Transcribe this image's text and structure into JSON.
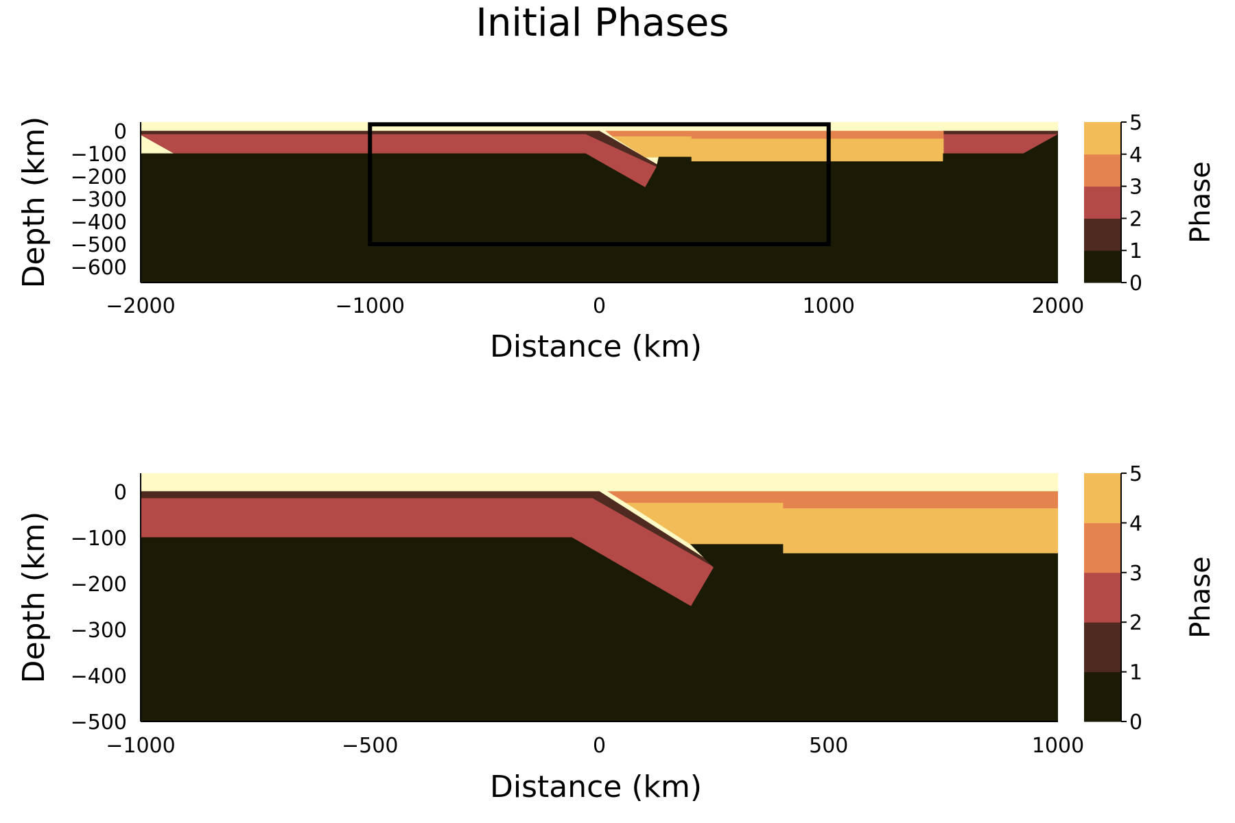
{
  "title": "Initial Phases",
  "colors": {
    "phase0": "#1b1a05",
    "phase1": "#4e2a20",
    "phase2": "#b34a48",
    "phase3": "#e5834f",
    "phase4": "#f2bd58",
    "phase5": "#fffac6",
    "frame": "#000000"
  },
  "chart_data": [
    {
      "type": "heatmap",
      "title": "",
      "xlabel": "Distance (km)",
      "ylabel": "Depth (km)",
      "xlim": [
        -2000,
        2000
      ],
      "ylim": [
        -670,
        40
      ],
      "xticks": [
        -2000,
        -1000,
        0,
        1000,
        2000
      ],
      "xtick_labels": [
        "−2000",
        "−1000",
        "0",
        "1000",
        "2000"
      ],
      "yticks": [
        0,
        -100,
        -200,
        -300,
        -400,
        -500,
        -600
      ],
      "ytick_labels": [
        "0",
        "−100",
        "−200",
        "−300",
        "−400",
        "−500",
        "−600"
      ],
      "grid": false,
      "colorbar": {
        "label": "Phase",
        "range": [
          0,
          5
        ],
        "ticks": [
          0,
          1,
          2,
          3,
          4,
          5
        ],
        "tick_labels": [
          "0",
          "1",
          "2",
          "3",
          "4",
          "5"
        ]
      },
      "zoom_box": {
        "x": [
          -1000,
          1000
        ],
        "y": [
          -500,
          30
        ]
      },
      "regions": [
        {
          "phase": 5,
          "points": [
            [
              -2000,
              40
            ],
            [
              2000,
              40
            ],
            [
              2000,
              -670
            ],
            [
              -2000,
              -670
            ]
          ]
        },
        {
          "phase": 1,
          "points": [
            [
              -2000,
              0
            ],
            [
              0,
              0
            ],
            [
              280,
              -165
            ],
            [
              250,
              -175
            ],
            [
              -1850,
              -100
            ],
            [
              -2000,
              -15
            ]
          ]
        },
        {
          "phase": 2,
          "points": [
            [
              -2000,
              -15
            ],
            [
              -60,
              -15
            ],
            [
              250,
              -160
            ],
            [
              200,
              -250
            ],
            [
              -60,
              -100
            ],
            [
              -1850,
              -100
            ]
          ]
        },
        {
          "phase": 1,
          "points": [
            [
              1500,
              0
            ],
            [
              2000,
              0
            ],
            [
              2000,
              -15
            ],
            [
              1500,
              -15
            ]
          ]
        },
        {
          "phase": 2,
          "points": [
            [
              1500,
              -15
            ],
            [
              2000,
              -15
            ],
            [
              1850,
              -100
            ],
            [
              1500,
              -100
            ]
          ]
        },
        {
          "phase": 3,
          "points": [
            [
              30,
              0
            ],
            [
              1500,
              0
            ],
            [
              1500,
              -35
            ],
            [
              400,
              -35
            ],
            [
              400,
              -25
            ],
            [
              60,
              -25
            ]
          ]
        },
        {
          "phase": 4,
          "points": [
            [
              60,
              -25
            ],
            [
              400,
              -25
            ],
            [
              400,
              -35
            ],
            [
              1500,
              -35
            ],
            [
              1500,
              -135
            ],
            [
              400,
              -135
            ],
            [
              400,
              -115
            ],
            [
              200,
              -115
            ]
          ]
        },
        {
          "phase": 0,
          "points": [
            [
              -2000,
              -100
            ],
            [
              -60,
              -100
            ],
            [
              200,
              -250
            ],
            [
              250,
              -160
            ],
            [
              260,
              -115
            ],
            [
              400,
              -115
            ],
            [
              400,
              -135
            ],
            [
              1500,
              -135
            ],
            [
              1500,
              -100
            ],
            [
              1850,
              -100
            ],
            [
              2000,
              -15
            ],
            [
              2000,
              -670
            ],
            [
              -2000,
              -670
            ]
          ]
        }
      ]
    },
    {
      "type": "heatmap",
      "title": "",
      "xlabel": "Distance (km)",
      "ylabel": "Depth (km)",
      "xlim": [
        -1000,
        1000
      ],
      "ylim": [
        -500,
        40
      ],
      "xticks": [
        -1000,
        -500,
        0,
        500,
        1000
      ],
      "xtick_labels": [
        "−1000",
        "−500",
        "0",
        "500",
        "1000"
      ],
      "yticks": [
        0,
        -100,
        -200,
        -300,
        -400,
        -500
      ],
      "ytick_labels": [
        "0",
        "−100",
        "−200",
        "−300",
        "−400",
        "−500"
      ],
      "grid": false,
      "colorbar": {
        "label": "Phase",
        "range": [
          0,
          5
        ],
        "ticks": [
          0,
          1,
          2,
          3,
          4,
          5
        ],
        "tick_labels": [
          "0",
          "1",
          "2",
          "3",
          "4",
          "5"
        ]
      },
      "regions": [
        {
          "phase": 5,
          "points": [
            [
              -1000,
              40
            ],
            [
              1000,
              40
            ],
            [
              1000,
              -500
            ],
            [
              -1000,
              -500
            ]
          ]
        },
        {
          "phase": 1,
          "points": [
            [
              -1000,
              0
            ],
            [
              0,
              0
            ],
            [
              260,
              -165
            ],
            [
              250,
              -175
            ],
            [
              -1000,
              -100
            ]
          ]
        },
        {
          "phase": 2,
          "points": [
            [
              -1000,
              -15
            ],
            [
              -15,
              -15
            ],
            [
              250,
              -165
            ],
            [
              200,
              -250
            ],
            [
              -60,
              -100
            ],
            [
              -1000,
              -100
            ]
          ]
        },
        {
          "phase": 3,
          "points": [
            [
              20,
              0
            ],
            [
              1000,
              0
            ],
            [
              1000,
              -37
            ],
            [
              400,
              -37
            ],
            [
              400,
              -25
            ],
            [
              60,
              -25
            ]
          ]
        },
        {
          "phase": 4,
          "points": [
            [
              60,
              -25
            ],
            [
              400,
              -25
            ],
            [
              400,
              -37
            ],
            [
              1000,
              -37
            ],
            [
              1000,
              -135
            ],
            [
              400,
              -135
            ],
            [
              400,
              -115
            ],
            [
              200,
              -115
            ]
          ]
        },
        {
          "phase": 0,
          "points": [
            [
              -1000,
              -100
            ],
            [
              -60,
              -100
            ],
            [
              200,
              -250
            ],
            [
              250,
              -165
            ],
            [
              200,
              -115
            ],
            [
              400,
              -115
            ],
            [
              400,
              -135
            ],
            [
              1000,
              -135
            ],
            [
              1000,
              -500
            ],
            [
              -1000,
              -500
            ]
          ]
        }
      ]
    }
  ]
}
